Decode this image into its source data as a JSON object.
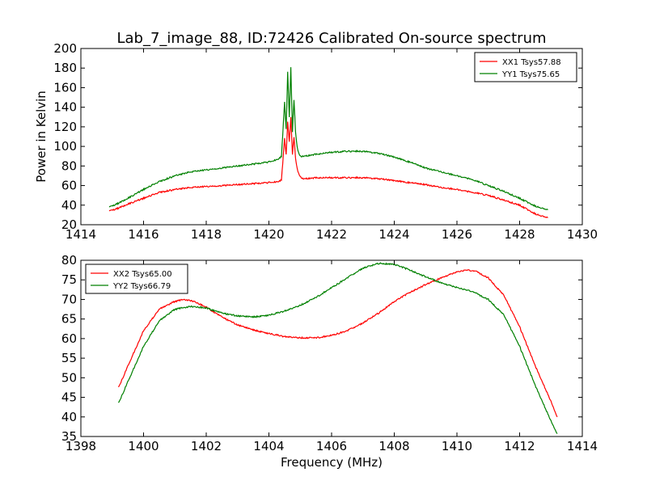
{
  "figure_title": "Lab_7_image_88, ID:72426 Calibrated On-source spectrum",
  "colors": {
    "xx": "#ff0000",
    "yy": "#008000",
    "frame": "#000000",
    "background": "#ffffff"
  },
  "chart_data": [
    {
      "type": "line",
      "title": "Lab_7_image_88, ID:72426 Calibrated On-source spectrum",
      "xlabel": "",
      "ylabel": "Power in Kelvin",
      "xlim": [
        1414,
        1430
      ],
      "ylim": [
        20,
        200
      ],
      "xticks": [
        1414,
        1416,
        1418,
        1420,
        1422,
        1424,
        1426,
        1428,
        1430
      ],
      "yticks": [
        20,
        40,
        60,
        80,
        100,
        120,
        140,
        160,
        180,
        200
      ],
      "legend_position": "top-right",
      "grid": false,
      "series": [
        {
          "name": "XX1 Tsys57.88",
          "color": "#ff0000",
          "x": [
            1414.9,
            1415.2,
            1415.5,
            1416.0,
            1416.5,
            1417.0,
            1417.5,
            1418.0,
            1418.5,
            1419.0,
            1419.5,
            1420.0,
            1420.3,
            1420.4,
            1420.5,
            1420.55,
            1420.6,
            1420.65,
            1420.7,
            1420.75,
            1420.8,
            1420.85,
            1420.9,
            1420.95,
            1421.0,
            1421.1,
            1421.5,
            1422.0,
            1422.5,
            1423.0,
            1423.5,
            1424.0,
            1424.5,
            1425.0,
            1425.5,
            1426.0,
            1426.5,
            1427.0,
            1427.5,
            1428.0,
            1428.5,
            1428.9
          ],
          "values": [
            34,
            37,
            41,
            47,
            53,
            56,
            58,
            59,
            60,
            61,
            62,
            63,
            64,
            66,
            108,
            92,
            125,
            105,
            130,
            92,
            110,
            88,
            78,
            72,
            69,
            67,
            68,
            68,
            68,
            68,
            67,
            65,
            63,
            61,
            58,
            56,
            53,
            50,
            45,
            40,
            31,
            27
          ]
        },
        {
          "name": "YY1 Tsys75.65",
          "color": "#008000",
          "x": [
            1414.9,
            1415.2,
            1415.5,
            1416.0,
            1416.5,
            1417.0,
            1417.5,
            1418.0,
            1418.5,
            1419.0,
            1419.5,
            1420.0,
            1420.3,
            1420.4,
            1420.5,
            1420.55,
            1420.6,
            1420.65,
            1420.7,
            1420.75,
            1420.8,
            1420.85,
            1420.9,
            1420.95,
            1421.0,
            1421.1,
            1421.5,
            1422.0,
            1422.5,
            1423.0,
            1423.5,
            1424.0,
            1424.5,
            1425.0,
            1425.5,
            1426.0,
            1426.5,
            1427.0,
            1427.5,
            1428.0,
            1428.5,
            1428.9
          ],
          "values": [
            38,
            42,
            47,
            56,
            64,
            70,
            74,
            76,
            78,
            80,
            82,
            84,
            87,
            90,
            145,
            118,
            176,
            130,
            181,
            115,
            148,
            115,
            100,
            93,
            90,
            90,
            92,
            94,
            95,
            95,
            93,
            89,
            84,
            78,
            74,
            70,
            66,
            60,
            54,
            47,
            39,
            35
          ]
        }
      ]
    },
    {
      "type": "line",
      "title": "",
      "xlabel": "Frequency (MHz)",
      "ylabel": "",
      "xlim": [
        1398,
        1414
      ],
      "ylim": [
        35,
        80
      ],
      "xticks": [
        1398,
        1400,
        1402,
        1404,
        1406,
        1408,
        1410,
        1412,
        1414
      ],
      "yticks": [
        35,
        40,
        45,
        50,
        55,
        60,
        65,
        70,
        75,
        80
      ],
      "legend_position": "top-left",
      "grid": false,
      "series": [
        {
          "name": "XX2 Tsys65.00",
          "color": "#ff0000",
          "x": [
            1399.2,
            1399.5,
            1400.0,
            1400.5,
            1401.0,
            1401.3,
            1401.6,
            1402.0,
            1402.5,
            1403.0,
            1403.5,
            1404.0,
            1404.5,
            1405.0,
            1405.5,
            1406.0,
            1406.5,
            1407.0,
            1407.5,
            1408.0,
            1408.5,
            1409.0,
            1409.5,
            1410.0,
            1410.3,
            1410.6,
            1411.0,
            1411.5,
            1412.0,
            1412.5,
            1413.0,
            1413.2
          ],
          "values": [
            47.5,
            53,
            62,
            67.5,
            69.5,
            70,
            69.5,
            68,
            65.5,
            63.5,
            62.2,
            61.3,
            60.5,
            60.2,
            60.2,
            60.8,
            62,
            64,
            66.5,
            69.5,
            71.8,
            73.8,
            75.5,
            77,
            77.5,
            77.2,
            75.5,
            71,
            63,
            53,
            44,
            40
          ]
        },
        {
          "name": "YY2 Tsys66.79",
          "color": "#008000",
          "x": [
            1399.2,
            1399.5,
            1400.0,
            1400.5,
            1401.0,
            1401.5,
            1402.0,
            1402.5,
            1403.0,
            1403.5,
            1404.0,
            1404.5,
            1405.0,
            1405.5,
            1406.0,
            1406.5,
            1407.0,
            1407.5,
            1408.0,
            1408.5,
            1409.0,
            1409.5,
            1410.0,
            1410.5,
            1411.0,
            1411.5,
            1412.0,
            1412.5,
            1413.0,
            1413.2
          ],
          "values": [
            43.5,
            49,
            58,
            64.5,
            67.5,
            68.2,
            67.8,
            66.5,
            65.8,
            65.5,
            66,
            67,
            68.5,
            70.5,
            73,
            75.5,
            78,
            79.2,
            79,
            77.5,
            75.8,
            74.2,
            73,
            72,
            70,
            66,
            58,
            48,
            39,
            35.7
          ]
        }
      ]
    }
  ]
}
